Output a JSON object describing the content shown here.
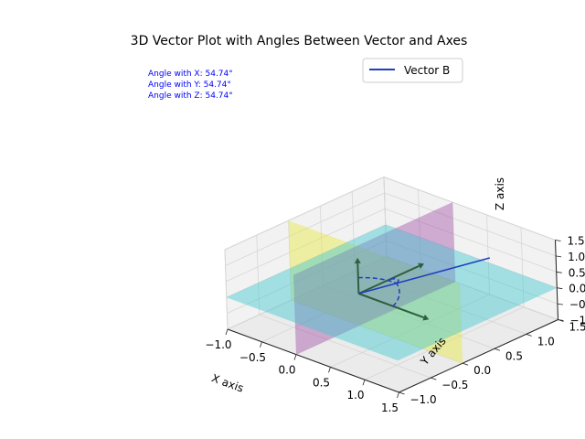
{
  "chart_data": {
    "type": "3d-vector",
    "title": "3D Vector Plot with Angles Between Vector and Axes",
    "xlabel": "X axis",
    "ylabel": "Y axis",
    "zlabel": "Z axis",
    "xlim": [
      -1.0,
      1.5
    ],
    "ylim": [
      -1.0,
      1.5
    ],
    "zlim": [
      -1.0,
      1.5
    ],
    "x_ticks": [
      "−1.0",
      "−0.5",
      "0.0",
      "0.5",
      "1.0",
      "1.5"
    ],
    "y_ticks": [
      "−1.0",
      "−0.5",
      "0.0",
      "0.5",
      "1.0",
      "1.5"
    ],
    "z_ticks": [
      "−1.0",
      "−0.5",
      "0.0",
      "0.5",
      "1.0",
      "1.5"
    ],
    "grid": true,
    "vectors": [
      {
        "name": "Vector B",
        "components": [
          1,
          1,
          1
        ],
        "color": "#1f3fbf",
        "style": "line"
      }
    ],
    "axis_arrows": [
      {
        "components": [
          1,
          0,
          0
        ],
        "color": "#2f5f3f"
      },
      {
        "components": [
          0,
          1,
          0
        ],
        "color": "#2f5f3f"
      },
      {
        "components": [
          0,
          0,
          1
        ],
        "color": "#2f5f3f"
      }
    ],
    "planes": [
      {
        "name": "xy",
        "color": "#40c8d0",
        "alpha": 0.45
      },
      {
        "name": "xz",
        "color": "#e8e840",
        "alpha": 0.45
      },
      {
        "name": "yz",
        "color": "#9a3fa0",
        "alpha": 0.4
      }
    ],
    "angles_deg": {
      "x": 54.74,
      "y": 54.74,
      "z": 54.74
    },
    "annotations": [
      "Angle with X: 54.74°",
      "Angle with Y: 54.74°",
      "Angle with Z: 54.74°"
    ],
    "legend": {
      "entries": [
        "Vector B"
      ],
      "placement": "top-right"
    }
  }
}
